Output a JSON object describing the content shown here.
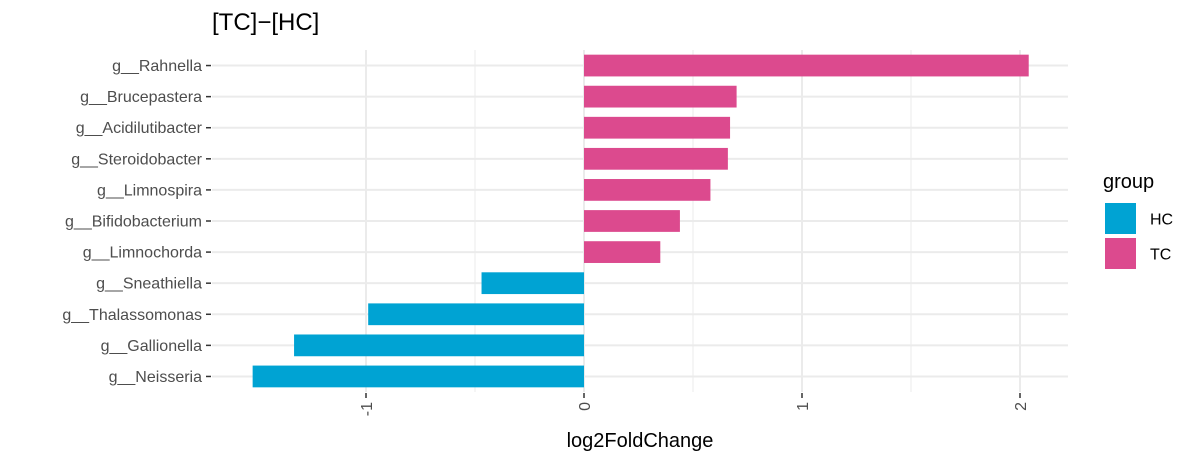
{
  "chart_data": {
    "type": "bar",
    "orientation": "horizontal",
    "title": "[TC]−[HC]",
    "xlabel": "log2FoldChange",
    "ylabel": "",
    "xlim": [
      -1.52,
      2.21
    ],
    "xticks": [
      -1,
      0,
      1,
      2
    ],
    "xtick_labels": [
      "-1",
      "0",
      "1",
      "2"
    ],
    "grid": true,
    "legend_position": "right",
    "categories": [
      "g__Rahnella",
      "g__Brucepastera",
      "g__Acidilutibacter",
      "g__Steroidobacter",
      "g__Limnospira",
      "g__Bifidobacterium",
      "g__Limnochorda",
      "g__Sneathiella",
      "g__Thalassomonas",
      "g__Gallionella",
      "g__Neisseria"
    ],
    "values": [
      2.04,
      0.7,
      0.67,
      0.66,
      0.58,
      0.44,
      0.35,
      -0.47,
      -0.99,
      -1.33,
      -1.52
    ],
    "groups": [
      "TC",
      "TC",
      "TC",
      "TC",
      "TC",
      "TC",
      "TC",
      "HC",
      "HC",
      "HC",
      "HC"
    ],
    "legend": {
      "title": "group",
      "items": [
        {
          "name": "HC",
          "color": "#00A3D3"
        },
        {
          "name": "TC",
          "color": "#DC4A8E"
        }
      ]
    }
  }
}
